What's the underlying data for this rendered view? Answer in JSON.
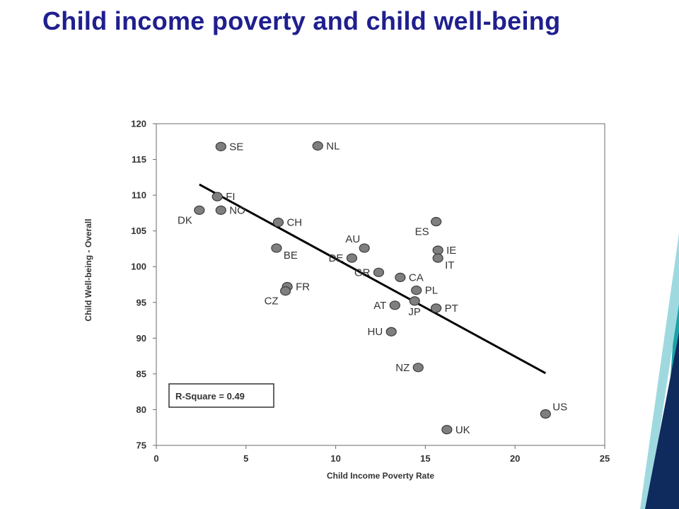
{
  "title": "Child income poverty and child well-being",
  "chart_data": {
    "type": "scatter",
    "title": "",
    "xlabel": "Child Income Poverty Rate",
    "ylabel": "Child Well-being - Overall",
    "xlim": [
      0,
      25
    ],
    "ylim": [
      75,
      120
    ],
    "xticks": [
      0,
      5,
      10,
      15,
      20,
      25
    ],
    "xtick_labels": [
      "0",
      "5",
      "10",
      "15",
      "20",
      "25"
    ],
    "yticks": [
      75,
      80,
      85,
      90,
      95,
      100,
      105,
      110,
      115,
      120
    ],
    "grid": false,
    "points": [
      {
        "label": "SE",
        "x": 3.6,
        "y": 116.8,
        "pos": "right"
      },
      {
        "label": "NL",
        "x": 9.0,
        "y": 116.9,
        "pos": "right"
      },
      {
        "label": "FI",
        "x": 3.4,
        "y": 109.8,
        "pos": "right"
      },
      {
        "label": "DK",
        "x": 2.4,
        "y": 107.9,
        "pos": "below-left"
      },
      {
        "label": "NO",
        "x": 3.6,
        "y": 107.9,
        "pos": "right"
      },
      {
        "label": "CH",
        "x": 6.8,
        "y": 106.2,
        "pos": "right"
      },
      {
        "label": "ES",
        "x": 15.6,
        "y": 106.3,
        "pos": "below-left"
      },
      {
        "label": "BE",
        "x": 6.7,
        "y": 102.6,
        "pos": "below-right"
      },
      {
        "label": "AU",
        "x": 11.6,
        "y": 102.6,
        "pos": "above-left"
      },
      {
        "label": "DE",
        "x": 10.9,
        "y": 101.2,
        "pos": "left"
      },
      {
        "label": "IE",
        "x": 15.7,
        "y": 102.3,
        "pos": "right"
      },
      {
        "label": "IT",
        "x": 15.7,
        "y": 101.2,
        "pos": "below-right"
      },
      {
        "label": "GR",
        "x": 12.4,
        "y": 99.2,
        "pos": "left"
      },
      {
        "label": "CA",
        "x": 13.6,
        "y": 98.5,
        "pos": "right"
      },
      {
        "label": "FR",
        "x": 7.3,
        "y": 97.2,
        "pos": "right"
      },
      {
        "label": "CZ",
        "x": 7.2,
        "y": 96.6,
        "pos": "below-left"
      },
      {
        "label": "PL",
        "x": 14.5,
        "y": 96.7,
        "pos": "right"
      },
      {
        "label": "JP",
        "x": 14.4,
        "y": 95.2,
        "pos": "below"
      },
      {
        "label": "AT",
        "x": 13.3,
        "y": 94.6,
        "pos": "left"
      },
      {
        "label": "PT",
        "x": 15.6,
        "y": 94.2,
        "pos": "right"
      },
      {
        "label": "HU",
        "x": 13.1,
        "y": 90.9,
        "pos": "left"
      },
      {
        "label": "NZ",
        "x": 14.6,
        "y": 85.9,
        "pos": "left"
      },
      {
        "label": "US",
        "x": 21.7,
        "y": 79.4,
        "pos": "above-right"
      },
      {
        "label": "UK",
        "x": 16.2,
        "y": 77.2,
        "pos": "right"
      }
    ],
    "trendline": {
      "x": [
        2.4,
        21.7
      ],
      "y": [
        111.5,
        85.1
      ]
    },
    "annotation": "R-Square = 0.49"
  },
  "colors": {
    "title": "#1f1f8f",
    "point_fill": "#7f7f7f",
    "point_stroke": "#3a3a3a",
    "trendline": "#000000",
    "deco_dark": "#0f2a5c",
    "deco_teal": "#1aa3a8",
    "deco_light": "#9fd9e0"
  }
}
